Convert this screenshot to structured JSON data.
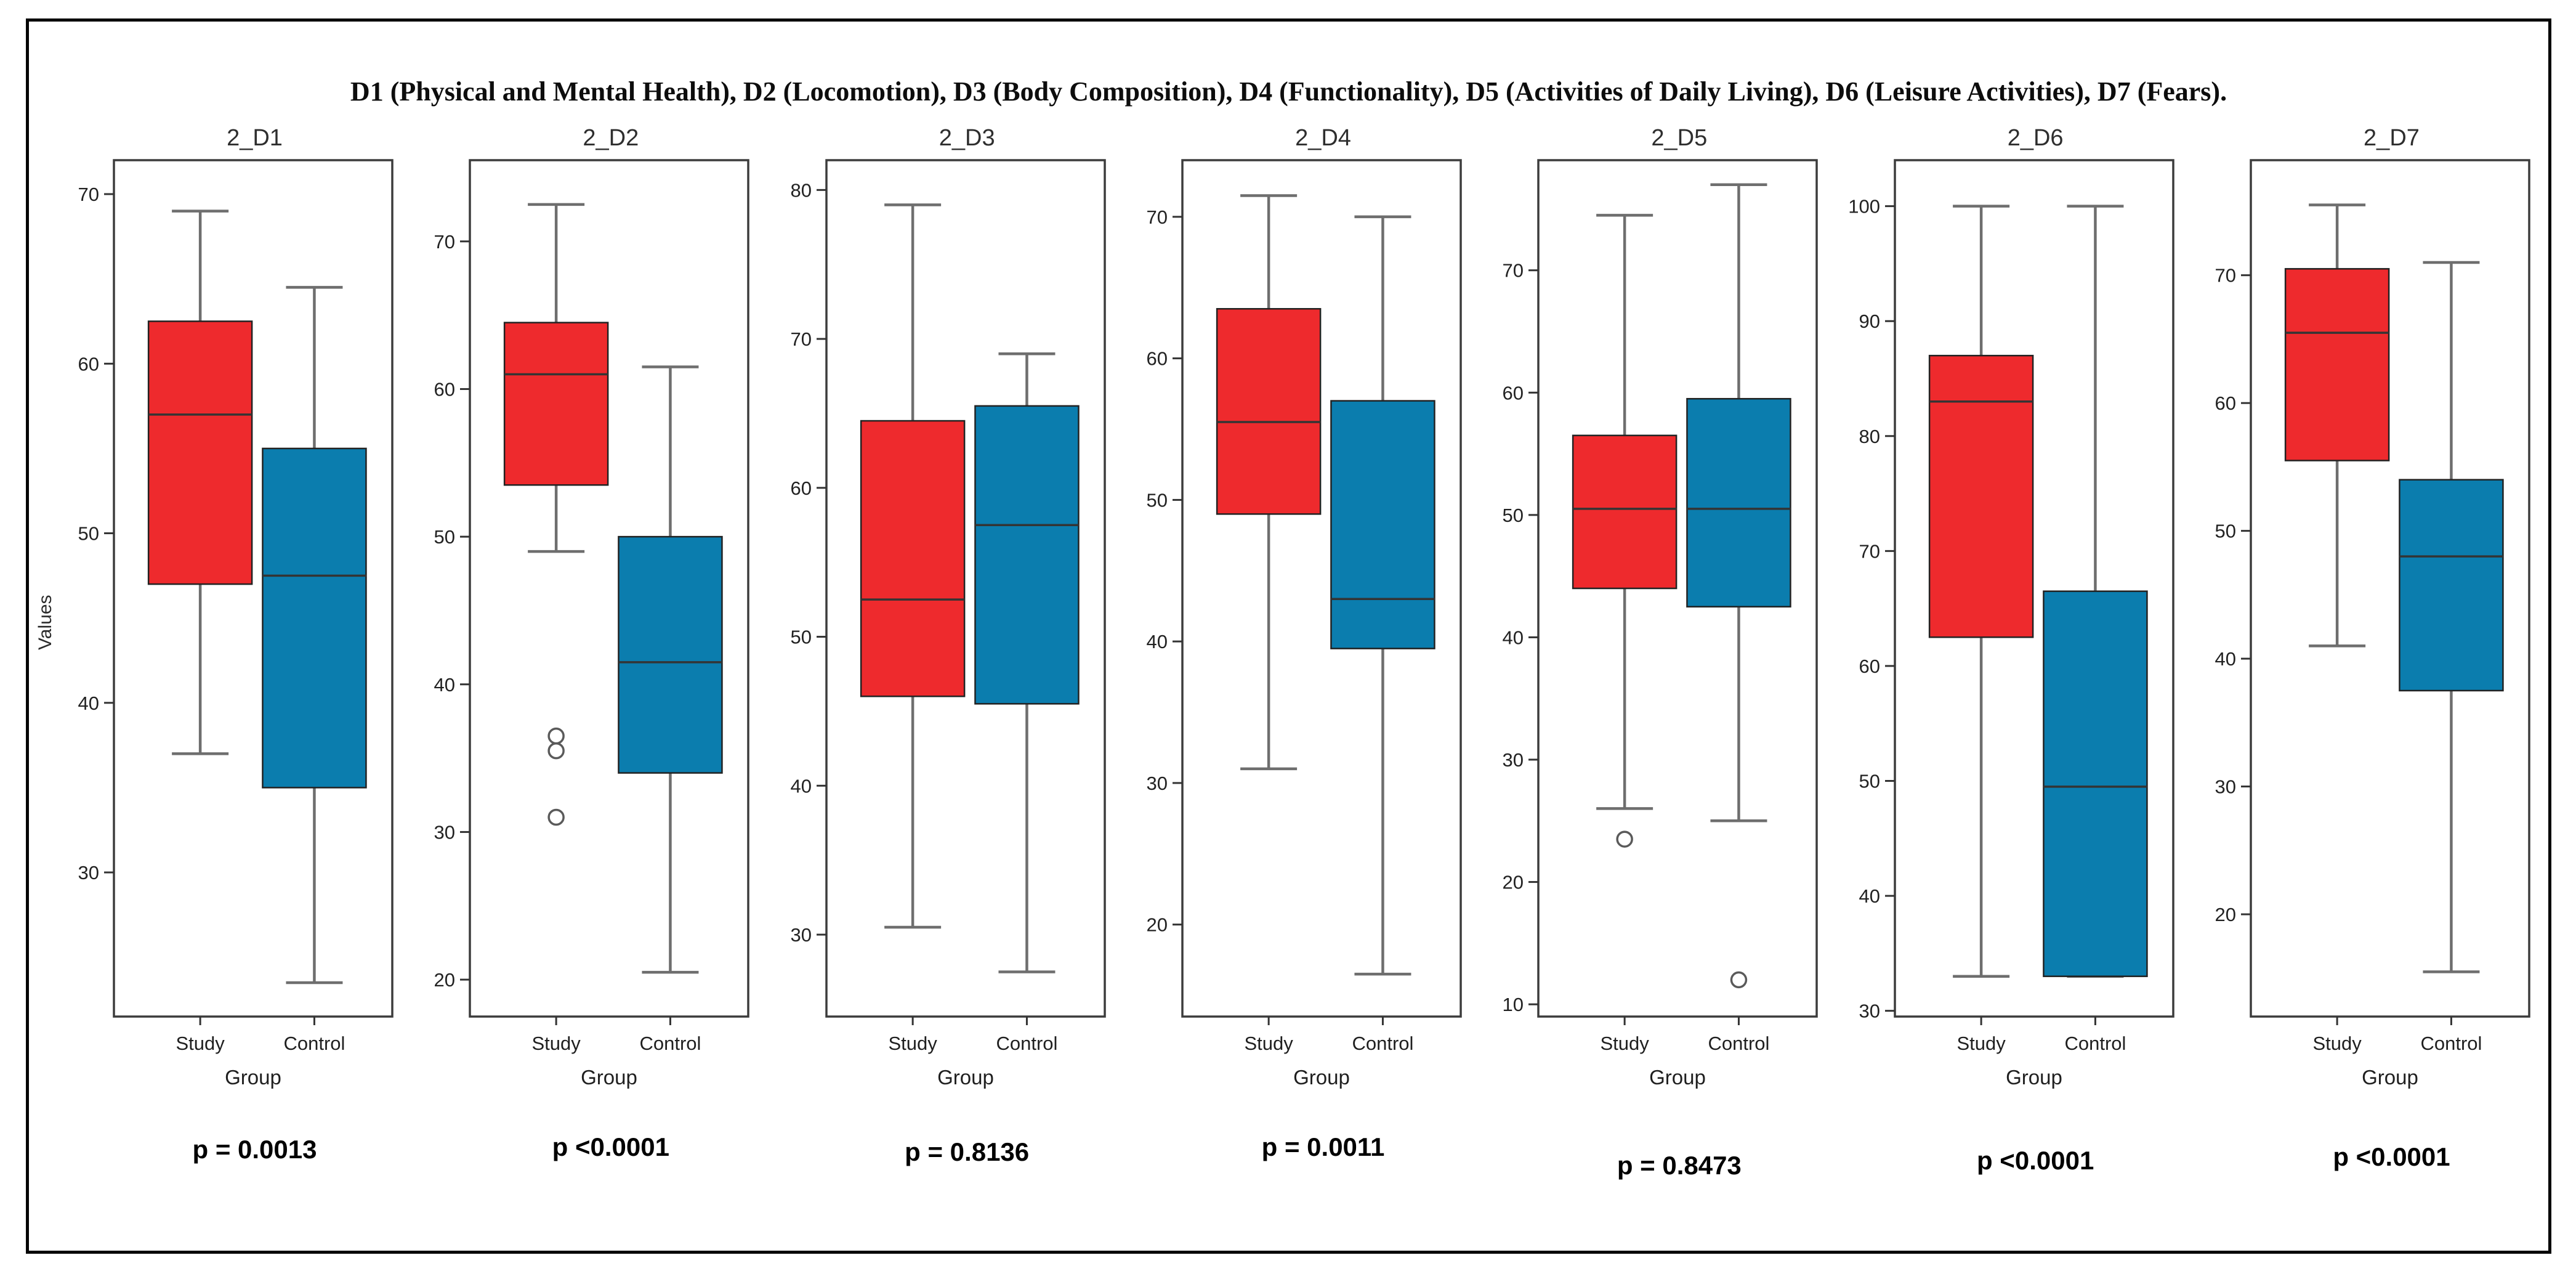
{
  "figure": {
    "title": "D1 (Physical and Mental Health), D2 (Locomotion), D3 (Body Composition), D4 (Functionality), D5 (Activities of Daily Living), D6 (Leisure Activities), D7 (Fears).",
    "y_axis_label": "Values",
    "x_axis_label": "Group",
    "group_labels": [
      "Study",
      "Control"
    ],
    "colors": {
      "study_box": "#ee2a2d",
      "control_box": "#0b7dae",
      "whisker": "#6e6e6e",
      "frame": "#3c3c3c",
      "median": "#343434",
      "outer_border": "#000000"
    }
  },
  "chart_data": [
    {
      "type": "box",
      "title": "2_D1",
      "p_label": "p = 0.0013",
      "ylim": [
        21.5,
        72
      ],
      "yticks": [
        30,
        40,
        50,
        60,
        70
      ],
      "series": [
        {
          "name": "Study",
          "whislo": 37,
          "q1": 47,
          "med": 57,
          "q3": 62.5,
          "whishi": 69,
          "outliers": []
        },
        {
          "name": "Control",
          "whislo": 23.5,
          "q1": 35,
          "med": 47.5,
          "q3": 55,
          "whishi": 64.5,
          "outliers": []
        }
      ]
    },
    {
      "type": "box",
      "title": "2_D2",
      "p_label": "p <0.0001",
      "ylim": [
        17.5,
        75.5
      ],
      "yticks": [
        20,
        30,
        40,
        50,
        60,
        70
      ],
      "series": [
        {
          "name": "Study",
          "whislo": 49,
          "q1": 53.5,
          "med": 61,
          "q3": 64.5,
          "whishi": 72.5,
          "outliers": [
            36.5,
            35.5,
            31
          ]
        },
        {
          "name": "Control",
          "whislo": 20.5,
          "q1": 34,
          "med": 41.5,
          "q3": 50,
          "whishi": 61.5,
          "outliers": []
        }
      ]
    },
    {
      "type": "box",
      "title": "2_D3",
      "p_label": "p = 0.8136",
      "ylim": [
        24.5,
        82
      ],
      "yticks": [
        30,
        40,
        50,
        60,
        70,
        80
      ],
      "series": [
        {
          "name": "Study",
          "whislo": 30.5,
          "q1": 46,
          "med": 52.5,
          "q3": 64.5,
          "whishi": 79,
          "outliers": []
        },
        {
          "name": "Control",
          "whislo": 27.5,
          "q1": 45.5,
          "med": 57.5,
          "q3": 65.5,
          "whishi": 69,
          "outliers": []
        }
      ]
    },
    {
      "type": "box",
      "title": "2_D4",
      "p_label": "p = 0.0011",
      "ylim": [
        13.5,
        74
      ],
      "yticks": [
        20,
        30,
        40,
        50,
        60,
        70
      ],
      "series": [
        {
          "name": "Study",
          "whislo": 31,
          "q1": 49,
          "med": 55.5,
          "q3": 63.5,
          "whishi": 71.5,
          "outliers": []
        },
        {
          "name": "Control",
          "whislo": 16.5,
          "q1": 39.5,
          "med": 43,
          "q3": 57,
          "whishi": 70,
          "outliers": []
        }
      ]
    },
    {
      "type": "box",
      "title": "2_D5",
      "p_label": "p = 0.8473",
      "ylim": [
        9,
        79
      ],
      "yticks": [
        10,
        20,
        30,
        40,
        50,
        60,
        70
      ],
      "series": [
        {
          "name": "Study",
          "whislo": 26,
          "q1": 44,
          "med": 50.5,
          "q3": 56.5,
          "whishi": 74.5,
          "outliers": [
            23.5
          ]
        },
        {
          "name": "Control",
          "whislo": 25,
          "q1": 42.5,
          "med": 50.5,
          "q3": 59.5,
          "whishi": 77,
          "outliers": [
            12
          ]
        }
      ]
    },
    {
      "type": "box",
      "title": "2_D6",
      "p_label": "p <0.0001",
      "ylim": [
        29.5,
        104
      ],
      "yticks": [
        30,
        40,
        50,
        60,
        70,
        80,
        90,
        100
      ],
      "series": [
        {
          "name": "Study",
          "whislo": 33,
          "q1": 62.5,
          "med": 83,
          "q3": 87,
          "whishi": 100,
          "outliers": []
        },
        {
          "name": "Control",
          "whislo": 33,
          "q1": 33,
          "med": 49.5,
          "q3": 66.5,
          "whishi": 100,
          "outliers": []
        }
      ]
    },
    {
      "type": "box",
      "title": "2_D7",
      "p_label": "p <0.0001",
      "ylim": [
        12,
        79
      ],
      "yticks": [
        20,
        30,
        40,
        50,
        60,
        70
      ],
      "series": [
        {
          "name": "Study",
          "whislo": 41,
          "q1": 55.5,
          "med": 65.5,
          "q3": 70.5,
          "whishi": 75.5,
          "outliers": []
        },
        {
          "name": "Control",
          "whislo": 15.5,
          "q1": 37.5,
          "med": 48,
          "q3": 54,
          "whishi": 71,
          "outliers": []
        }
      ]
    }
  ]
}
